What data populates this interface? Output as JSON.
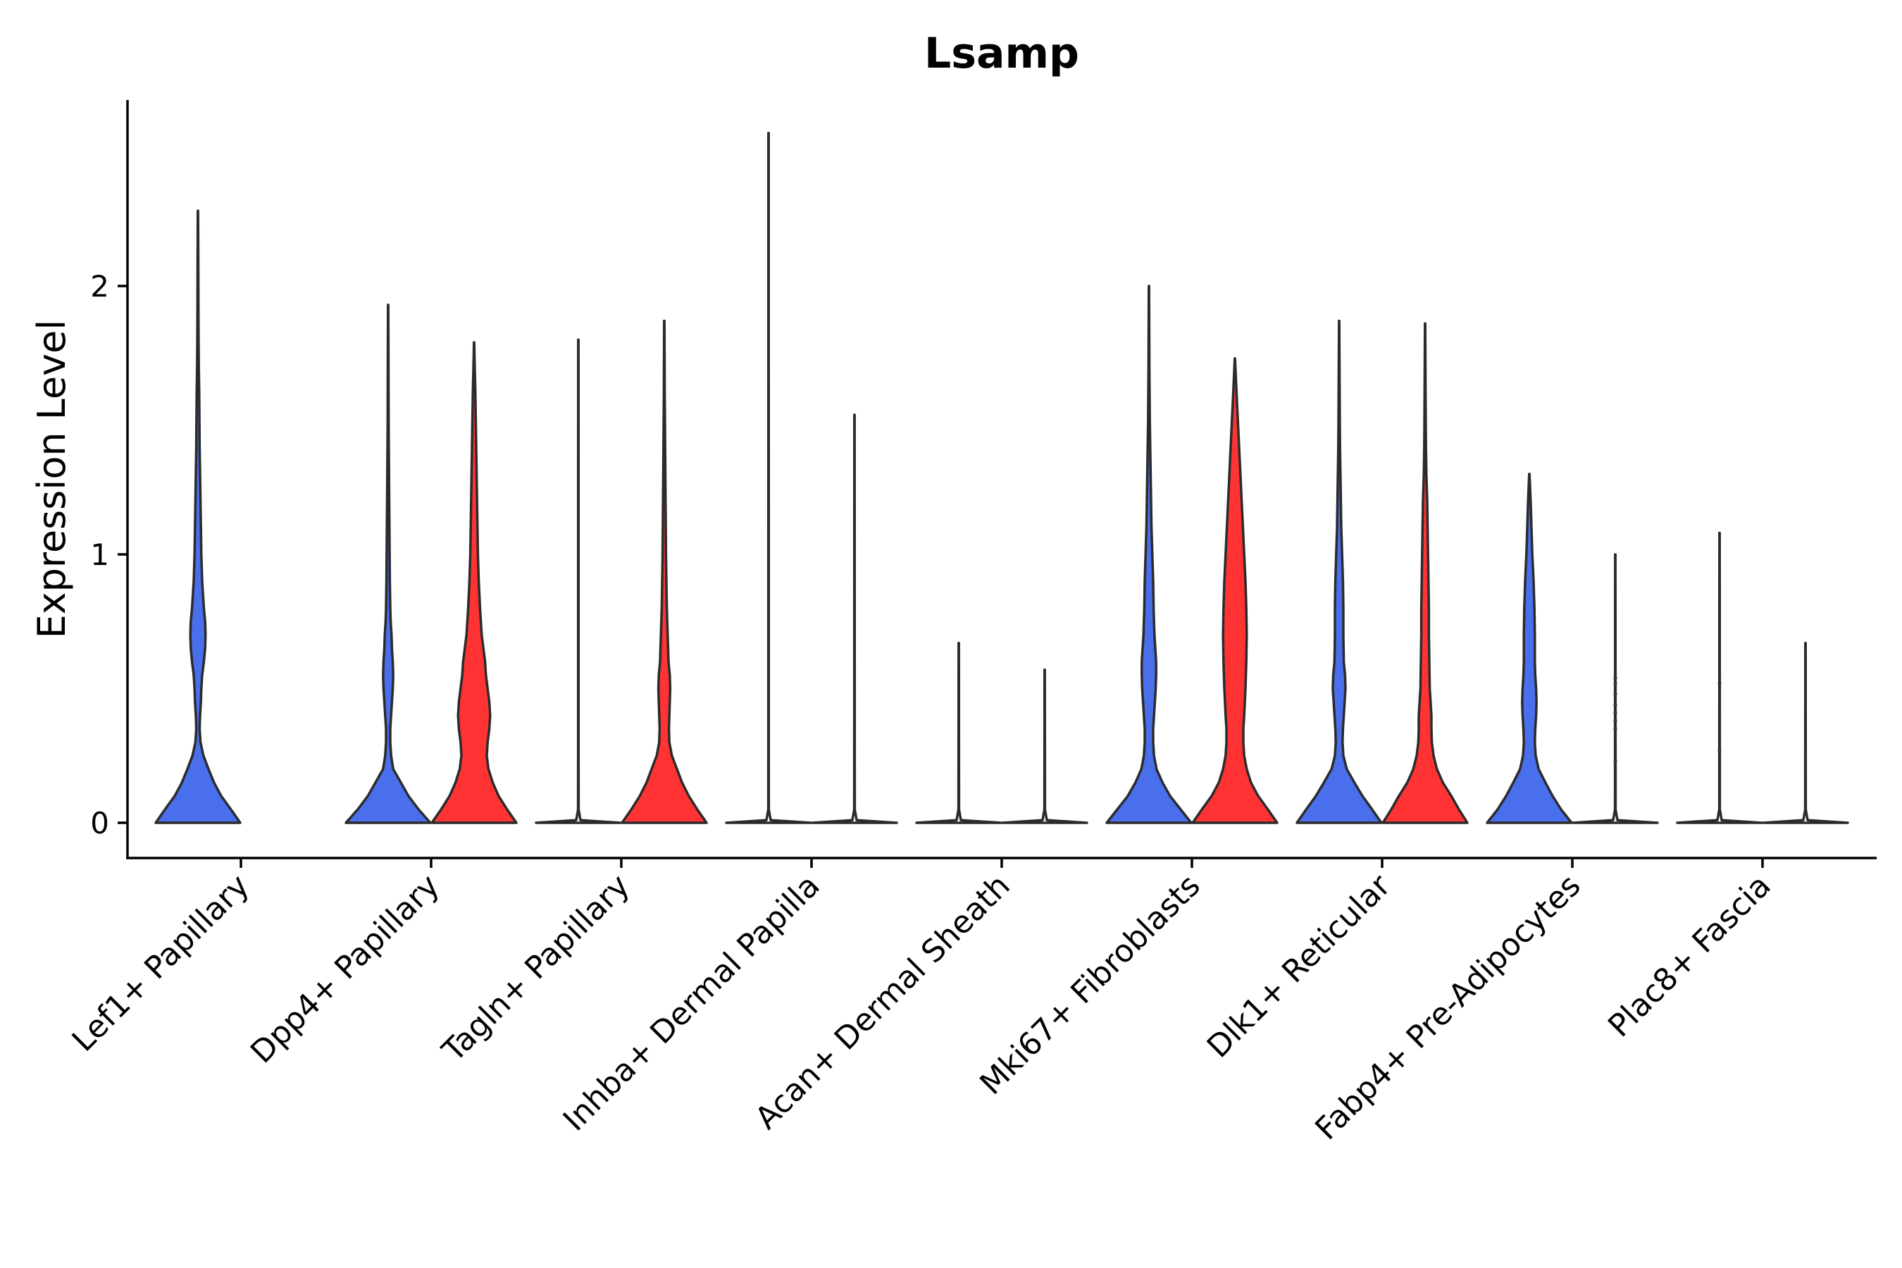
{
  "chart_data": {
    "type": "violin",
    "title": "Lsamp",
    "xlabel": "",
    "ylabel": "Expression Level",
    "ylim": [
      -0.13,
      2.7
    ],
    "yticks": [
      0,
      1,
      2
    ],
    "grid": false,
    "legend": "none",
    "groups": [
      "group A",
      "group B"
    ],
    "colors": {
      "group A": "#4A6FEC",
      "group B": "#FF3333",
      "empty": "#FFFFFF"
    },
    "categories": [
      "Lef1+ Papillary",
      "Dpp4+ Papillary",
      "Tagln+ Papillary",
      "Inhba+ Dermal Papilla",
      "Acan+ Dermal Sheath",
      "Mki67+ Fibroblasts",
      "Dlk1+ Reticular",
      "Fabp4+ Pre-Adipocytes",
      "Plac8+ Fascia"
    ],
    "violins": [
      {
        "category": "Lef1+ Papillary",
        "group": "group A",
        "max": 2.28,
        "filled": true,
        "density": [
          [
            0,
            1.0
          ],
          [
            0.05,
            0.78
          ],
          [
            0.1,
            0.55
          ],
          [
            0.15,
            0.38
          ],
          [
            0.2,
            0.25
          ],
          [
            0.25,
            0.13
          ],
          [
            0.3,
            0.06
          ],
          [
            0.35,
            0.04
          ],
          [
            0.4,
            0.05
          ],
          [
            0.45,
            0.07
          ],
          [
            0.5,
            0.08
          ],
          [
            0.55,
            0.1
          ],
          [
            0.6,
            0.14
          ],
          [
            0.65,
            0.17
          ],
          [
            0.7,
            0.18
          ],
          [
            0.75,
            0.17
          ],
          [
            0.8,
            0.14
          ],
          [
            0.9,
            0.1
          ],
          [
            1.0,
            0.08
          ],
          [
            1.1,
            0.07
          ],
          [
            1.2,
            0.06
          ],
          [
            1.3,
            0.05
          ],
          [
            1.4,
            0.04
          ],
          [
            1.5,
            0.035
          ],
          [
            1.6,
            0.03
          ],
          [
            1.7,
            0.02
          ],
          [
            1.8,
            0.015
          ],
          [
            1.9,
            0.012
          ],
          [
            2.0,
            0.01
          ],
          [
            2.1,
            0.008
          ],
          [
            2.28,
            0.004
          ]
        ]
      },
      {
        "category": "Dpp4+ Papillary",
        "group": "group A",
        "max": 1.93,
        "filled": true,
        "density": [
          [
            0,
            1.0
          ],
          [
            0.05,
            0.72
          ],
          [
            0.1,
            0.48
          ],
          [
            0.15,
            0.3
          ],
          [
            0.2,
            0.12
          ],
          [
            0.25,
            0.07
          ],
          [
            0.3,
            0.05
          ],
          [
            0.35,
            0.05
          ],
          [
            0.4,
            0.07
          ],
          [
            0.45,
            0.09
          ],
          [
            0.5,
            0.11
          ],
          [
            0.55,
            0.12
          ],
          [
            0.6,
            0.11
          ],
          [
            0.65,
            0.09
          ],
          [
            0.7,
            0.08
          ],
          [
            0.75,
            0.06
          ],
          [
            0.8,
            0.05
          ],
          [
            0.9,
            0.04
          ],
          [
            1.0,
            0.035
          ],
          [
            1.1,
            0.03
          ],
          [
            1.2,
            0.025
          ],
          [
            1.3,
            0.02
          ],
          [
            1.4,
            0.015
          ],
          [
            1.5,
            0.012
          ],
          [
            1.6,
            0.01
          ],
          [
            1.7,
            0.008
          ],
          [
            1.93,
            0.004
          ]
        ]
      },
      {
        "category": "Dpp4+ Papillary",
        "group": "group B",
        "max": 1.79,
        "filled": true,
        "density": [
          [
            0,
            1.0
          ],
          [
            0.05,
            0.78
          ],
          [
            0.1,
            0.58
          ],
          [
            0.15,
            0.44
          ],
          [
            0.2,
            0.34
          ],
          [
            0.25,
            0.3
          ],
          [
            0.3,
            0.32
          ],
          [
            0.35,
            0.36
          ],
          [
            0.4,
            0.38
          ],
          [
            0.45,
            0.36
          ],
          [
            0.5,
            0.32
          ],
          [
            0.55,
            0.28
          ],
          [
            0.6,
            0.26
          ],
          [
            0.65,
            0.22
          ],
          [
            0.7,
            0.18
          ],
          [
            0.8,
            0.14
          ],
          [
            0.9,
            0.11
          ],
          [
            1.0,
            0.09
          ],
          [
            1.1,
            0.08
          ],
          [
            1.2,
            0.07
          ],
          [
            1.3,
            0.06
          ],
          [
            1.4,
            0.05
          ],
          [
            1.5,
            0.04
          ],
          [
            1.6,
            0.03
          ],
          [
            1.7,
            0.015
          ],
          [
            1.79,
            0.004
          ]
        ]
      },
      {
        "category": "Tagln+ Papillary",
        "group": "group A",
        "max": 1.8,
        "filled": false,
        "density": [
          [
            0,
            1.0
          ],
          [
            0.01,
            0.05
          ],
          [
            0.05,
            0.006
          ],
          [
            0.3,
            0.005
          ],
          [
            1.0,
            0.005
          ],
          [
            1.8,
            0.004
          ]
        ]
      },
      {
        "category": "Tagln+ Papillary",
        "group": "group B",
        "max": 1.87,
        "filled": true,
        "density": [
          [
            0,
            1.0
          ],
          [
            0.05,
            0.78
          ],
          [
            0.1,
            0.58
          ],
          [
            0.15,
            0.42
          ],
          [
            0.2,
            0.3
          ],
          [
            0.25,
            0.18
          ],
          [
            0.3,
            0.12
          ],
          [
            0.35,
            0.11
          ],
          [
            0.4,
            0.12
          ],
          [
            0.45,
            0.13
          ],
          [
            0.5,
            0.14
          ],
          [
            0.55,
            0.13
          ],
          [
            0.6,
            0.1
          ],
          [
            0.7,
            0.08
          ],
          [
            0.8,
            0.06
          ],
          [
            0.9,
            0.05
          ],
          [
            1.0,
            0.04
          ],
          [
            1.1,
            0.035
          ],
          [
            1.2,
            0.03
          ],
          [
            1.3,
            0.025
          ],
          [
            1.4,
            0.02
          ],
          [
            1.5,
            0.015
          ],
          [
            1.6,
            0.01
          ],
          [
            1.7,
            0.008
          ],
          [
            1.87,
            0.004
          ]
        ]
      },
      {
        "category": "Inhba+ Dermal Papilla",
        "group": "group A",
        "max": 2.57,
        "filled": false,
        "density": [
          [
            0,
            1.0
          ],
          [
            0.01,
            0.05
          ],
          [
            0.05,
            0.006
          ],
          [
            0.3,
            0.005
          ],
          [
            1.0,
            0.005
          ],
          [
            2.0,
            0.004
          ],
          [
            2.57,
            0.004
          ]
        ]
      },
      {
        "category": "Inhba+ Dermal Papilla",
        "group": "group B",
        "max": 1.52,
        "filled": false,
        "density": [
          [
            0,
            1.0
          ],
          [
            0.01,
            0.05
          ],
          [
            0.05,
            0.006
          ],
          [
            0.5,
            0.005
          ],
          [
            1.52,
            0.004
          ]
        ]
      },
      {
        "category": "Acan+ Dermal Sheath",
        "group": "group A",
        "max": 0.67,
        "filled": false,
        "density": [
          [
            0,
            1.0
          ],
          [
            0.01,
            0.05
          ],
          [
            0.05,
            0.006
          ],
          [
            0.3,
            0.005
          ],
          [
            0.67,
            0.004
          ]
        ]
      },
      {
        "category": "Acan+ Dermal Sheath",
        "group": "group B",
        "max": 0.57,
        "filled": false,
        "density": [
          [
            0,
            1.0
          ],
          [
            0.01,
            0.05
          ],
          [
            0.05,
            0.006
          ],
          [
            0.3,
            0.005
          ],
          [
            0.57,
            0.004
          ]
        ]
      },
      {
        "category": "Mki67+ Fibroblasts",
        "group": "group A",
        "max": 2.0,
        "filled": true,
        "density": [
          [
            0,
            1.0
          ],
          [
            0.05,
            0.75
          ],
          [
            0.1,
            0.5
          ],
          [
            0.15,
            0.32
          ],
          [
            0.2,
            0.18
          ],
          [
            0.25,
            0.12
          ],
          [
            0.3,
            0.1
          ],
          [
            0.35,
            0.1
          ],
          [
            0.4,
            0.12
          ],
          [
            0.45,
            0.14
          ],
          [
            0.5,
            0.16
          ],
          [
            0.55,
            0.17
          ],
          [
            0.6,
            0.17
          ],
          [
            0.65,
            0.15
          ],
          [
            0.7,
            0.13
          ],
          [
            0.8,
            0.11
          ],
          [
            0.9,
            0.1
          ],
          [
            1.0,
            0.08
          ],
          [
            1.1,
            0.06
          ],
          [
            1.2,
            0.05
          ],
          [
            1.3,
            0.04
          ],
          [
            1.4,
            0.03
          ],
          [
            1.5,
            0.02
          ],
          [
            1.6,
            0.015
          ],
          [
            1.7,
            0.01
          ],
          [
            2.0,
            0.004
          ]
        ]
      },
      {
        "category": "Mki67+ Fibroblasts",
        "group": "group B",
        "max": 1.73,
        "filled": true,
        "density": [
          [
            0,
            1.0
          ],
          [
            0.05,
            0.78
          ],
          [
            0.1,
            0.55
          ],
          [
            0.15,
            0.38
          ],
          [
            0.2,
            0.28
          ],
          [
            0.25,
            0.22
          ],
          [
            0.3,
            0.2
          ],
          [
            0.35,
            0.2
          ],
          [
            0.4,
            0.22
          ],
          [
            0.5,
            0.25
          ],
          [
            0.6,
            0.27
          ],
          [
            0.7,
            0.28
          ],
          [
            0.8,
            0.27
          ],
          [
            0.9,
            0.25
          ],
          [
            1.0,
            0.22
          ],
          [
            1.1,
            0.19
          ],
          [
            1.2,
            0.16
          ],
          [
            1.3,
            0.13
          ],
          [
            1.4,
            0.1
          ],
          [
            1.5,
            0.07
          ],
          [
            1.6,
            0.04
          ],
          [
            1.73,
            0.004
          ]
        ]
      },
      {
        "category": "Dlk1+ Reticular",
        "group": "group A",
        "max": 1.87,
        "filled": true,
        "density": [
          [
            0,
            1.0
          ],
          [
            0.05,
            0.78
          ],
          [
            0.1,
            0.55
          ],
          [
            0.15,
            0.36
          ],
          [
            0.2,
            0.18
          ],
          [
            0.25,
            0.1
          ],
          [
            0.3,
            0.08
          ],
          [
            0.35,
            0.09
          ],
          [
            0.4,
            0.11
          ],
          [
            0.45,
            0.13
          ],
          [
            0.5,
            0.15
          ],
          [
            0.55,
            0.14
          ],
          [
            0.6,
            0.11
          ],
          [
            0.7,
            0.1
          ],
          [
            0.8,
            0.1
          ],
          [
            0.9,
            0.09
          ],
          [
            1.0,
            0.07
          ],
          [
            1.1,
            0.05
          ],
          [
            1.2,
            0.04
          ],
          [
            1.3,
            0.03
          ],
          [
            1.4,
            0.02
          ],
          [
            1.5,
            0.015
          ],
          [
            1.6,
            0.012
          ],
          [
            1.7,
            0.008
          ],
          [
            1.87,
            0.004
          ]
        ]
      },
      {
        "category": "Dlk1+ Reticular",
        "group": "group B",
        "max": 1.86,
        "filled": true,
        "density": [
          [
            0,
            1.0
          ],
          [
            0.05,
            0.8
          ],
          [
            0.1,
            0.62
          ],
          [
            0.15,
            0.42
          ],
          [
            0.2,
            0.28
          ],
          [
            0.25,
            0.2
          ],
          [
            0.3,
            0.16
          ],
          [
            0.35,
            0.15
          ],
          [
            0.4,
            0.15
          ],
          [
            0.45,
            0.13
          ],
          [
            0.5,
            0.11
          ],
          [
            0.6,
            0.1
          ],
          [
            0.7,
            0.09
          ],
          [
            0.8,
            0.09
          ],
          [
            0.9,
            0.08
          ],
          [
            1.0,
            0.07
          ],
          [
            1.1,
            0.06
          ],
          [
            1.2,
            0.05
          ],
          [
            1.3,
            0.03
          ],
          [
            1.4,
            0.02
          ],
          [
            1.5,
            0.015
          ],
          [
            1.6,
            0.012
          ],
          [
            1.7,
            0.008
          ],
          [
            1.86,
            0.004
          ]
        ]
      },
      {
        "category": "Fabp4+ Pre-Adipocytes",
        "group": "group A",
        "max": 1.3,
        "filled": true,
        "density": [
          [
            0,
            1.0
          ],
          [
            0.05,
            0.75
          ],
          [
            0.1,
            0.55
          ],
          [
            0.15,
            0.38
          ],
          [
            0.2,
            0.22
          ],
          [
            0.25,
            0.15
          ],
          [
            0.3,
            0.13
          ],
          [
            0.35,
            0.14
          ],
          [
            0.4,
            0.16
          ],
          [
            0.45,
            0.17
          ],
          [
            0.5,
            0.16
          ],
          [
            0.55,
            0.14
          ],
          [
            0.6,
            0.13
          ],
          [
            0.7,
            0.13
          ],
          [
            0.8,
            0.12
          ],
          [
            0.9,
            0.1
          ],
          [
            1.0,
            0.07
          ],
          [
            1.1,
            0.05
          ],
          [
            1.2,
            0.03
          ],
          [
            1.3,
            0.004
          ]
        ]
      },
      {
        "category": "Fabp4+ Pre-Adipocytes",
        "group": "group B",
        "max": 1.0,
        "filled": false,
        "density": [
          [
            0,
            1.0
          ],
          [
            0.01,
            0.05
          ],
          [
            0.05,
            0.006
          ],
          [
            0.5,
            0.005
          ],
          [
            1.0,
            0.004
          ]
        ],
        "points": [
          0.23,
          0.35,
          0.38,
          0.41,
          0.44,
          0.48,
          0.52,
          0.54
        ]
      },
      {
        "category": "Plac8+ Fascia",
        "group": "group A",
        "max": 1.08,
        "filled": false,
        "density": [
          [
            0,
            1.0
          ],
          [
            0.01,
            0.05
          ],
          [
            0.05,
            0.006
          ],
          [
            0.5,
            0.005
          ],
          [
            1.08,
            0.004
          ]
        ],
        "points": [
          0.27,
          0.52
        ]
      },
      {
        "category": "Plac8+ Fascia",
        "group": "group B",
        "max": 0.67,
        "filled": false,
        "density": [
          [
            0,
            1.0
          ],
          [
            0.01,
            0.05
          ],
          [
            0.05,
            0.006
          ],
          [
            0.3,
            0.005
          ],
          [
            0.67,
            0.004
          ]
        ]
      }
    ]
  }
}
